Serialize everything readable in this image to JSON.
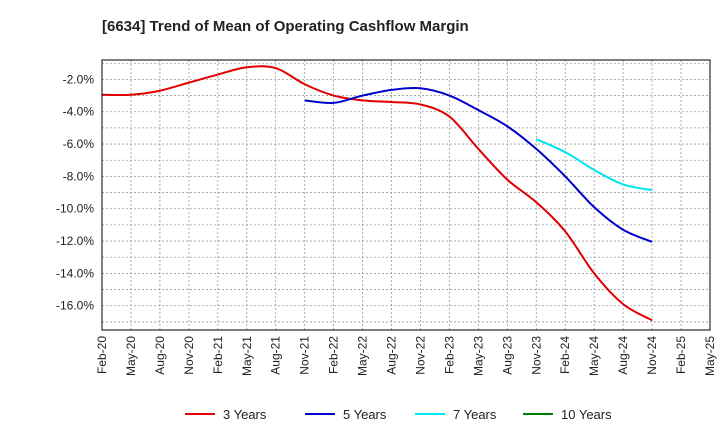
{
  "chart_data": {
    "type": "line",
    "title": "[6634]  Trend of Mean of Operating Cashflow Margin",
    "xlabel": "",
    "ylabel": "",
    "ylim": [
      -17.5,
      -0.8
    ],
    "yticks": [
      -2,
      -4,
      -6,
      -8,
      -10,
      -12,
      -14,
      -16
    ],
    "ytick_labels": [
      "-2.0%",
      "-4.0%",
      "-6.0%",
      "-8.0%",
      "-10.0%",
      "-12.0%",
      "-14.0%",
      "-16.0%"
    ],
    "categories": [
      "Feb-20",
      "May-20",
      "Aug-20",
      "Nov-20",
      "Feb-21",
      "May-21",
      "Aug-21",
      "Nov-21",
      "Feb-22",
      "May-22",
      "Aug-22",
      "Nov-22",
      "Feb-23",
      "May-23",
      "Aug-23",
      "Nov-23",
      "Feb-24",
      "May-24",
      "Aug-24",
      "Nov-24",
      "Feb-25",
      "May-25"
    ],
    "grid": true,
    "legend_position": "bottom",
    "series": [
      {
        "name": "3 Years",
        "color": "#e00000",
        "values": [
          -2.95,
          -2.95,
          -2.7,
          -2.2,
          -1.7,
          -1.25,
          -1.3,
          -2.3,
          -3.0,
          -3.3,
          -3.4,
          -3.55,
          -4.3,
          -6.3,
          -8.2,
          -9.6,
          -11.4,
          -14.0,
          -15.9,
          -16.9,
          null,
          null
        ]
      },
      {
        "name": "5 Years",
        "color": "#0000cc",
        "values": [
          null,
          null,
          null,
          null,
          null,
          null,
          null,
          -3.3,
          -3.45,
          -3.0,
          -2.65,
          -2.55,
          -3.0,
          -3.9,
          -4.9,
          -6.3,
          -8.0,
          -9.9,
          -11.3,
          -12.05,
          null,
          null
        ]
      },
      {
        "name": "7 Years",
        "color": "#00e5ee",
        "values": [
          null,
          null,
          null,
          null,
          null,
          null,
          null,
          null,
          null,
          null,
          null,
          null,
          null,
          null,
          null,
          -5.7,
          -6.5,
          -7.6,
          -8.5,
          -8.85,
          null,
          null
        ]
      },
      {
        "name": "10 Years",
        "color": "#008000",
        "values": [
          null,
          null,
          null,
          null,
          null,
          null,
          null,
          null,
          null,
          null,
          null,
          null,
          null,
          null,
          null,
          null,
          null,
          null,
          null,
          null,
          null,
          null
        ]
      }
    ]
  }
}
